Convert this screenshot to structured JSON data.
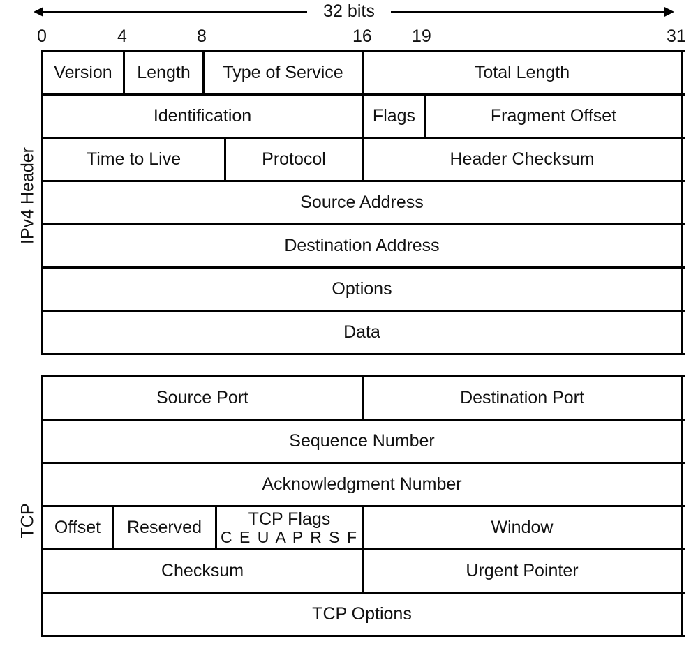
{
  "header": {
    "width_label": "32 bits",
    "bit_ticks": [
      "0",
      "4",
      "8",
      "16",
      "19",
      "31"
    ]
  },
  "ipv4": {
    "side_label": "IPv4 Header",
    "rows": [
      [
        "Version",
        "Length",
        "Type of Service",
        "Total Length"
      ],
      [
        "Identification",
        "Flags",
        "Fragment Offset"
      ],
      [
        "Time to Live",
        "Protocol",
        "Header Checksum"
      ],
      [
        "Source Address"
      ],
      [
        "Destination Address"
      ],
      [
        "Options"
      ],
      [
        "Data"
      ]
    ]
  },
  "tcp": {
    "side_label": "TCP",
    "rows": [
      [
        "Source Port",
        "Destination Port"
      ],
      [
        "Sequence Number"
      ],
      [
        "Acknowledgment Number"
      ],
      [
        "Offset",
        "Reserved",
        "TCP Flags",
        "Window"
      ],
      [
        "Checksum",
        "Urgent Pointer"
      ],
      [
        "TCP Options"
      ]
    ],
    "flag_bits": "C E U A P R S F"
  }
}
